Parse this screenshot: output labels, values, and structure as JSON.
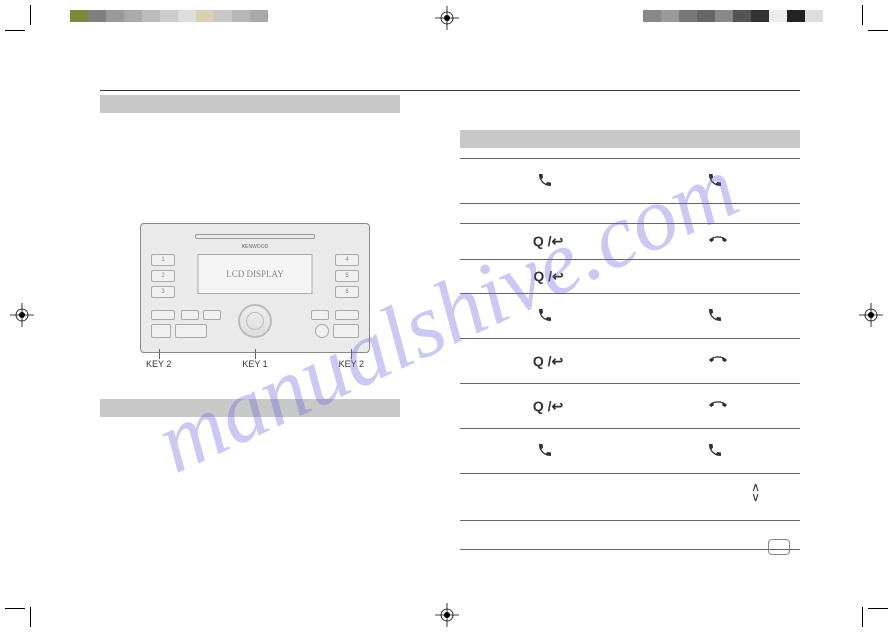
{
  "watermark": "manualshive.com",
  "device": {
    "brand": "KENWOOD",
    "screen_text": "LCD DISPLAY",
    "num_buttons": [
      "1",
      "2",
      "3",
      "4",
      "5",
      "6"
    ],
    "key_labels": [
      "KEY 2",
      "KEY 1",
      "KEY 2"
    ]
  },
  "colorbar_left": [
    "#7a8a3a",
    "#808080",
    "#999999",
    "#aaaaaa",
    "#bbbbbb",
    "#cccccc",
    "#dddddd",
    "#d8d0b0",
    "#c8c8c8",
    "#b8b8b8",
    "#a8a8a8"
  ],
  "colorbar_right": [
    "#888888",
    "#999999",
    "#777777",
    "#666666",
    "#888888",
    "#555555",
    "#333333",
    "#eeeeee",
    "#222222",
    "#dddddd"
  ],
  "table_rows": [
    {
      "icons": [
        "phone",
        "phone"
      ],
      "tall": true
    },
    {
      "icons": [],
      "tall": false
    },
    {
      "icons": [
        "search-back",
        "hangup"
      ],
      "tall": false
    },
    {
      "icons": [
        "search-back",
        "blank"
      ],
      "tall": false
    },
    {
      "icons": [
        "phone",
        "phone"
      ],
      "tall": true
    },
    {
      "icons": [
        "search-back",
        "hangup"
      ],
      "tall": true
    },
    {
      "icons": [
        "search-back",
        "hangup"
      ],
      "tall": true
    },
    {
      "icons": [
        "phone",
        "phone"
      ],
      "tall": true
    }
  ],
  "arrows": "∧\n∨"
}
